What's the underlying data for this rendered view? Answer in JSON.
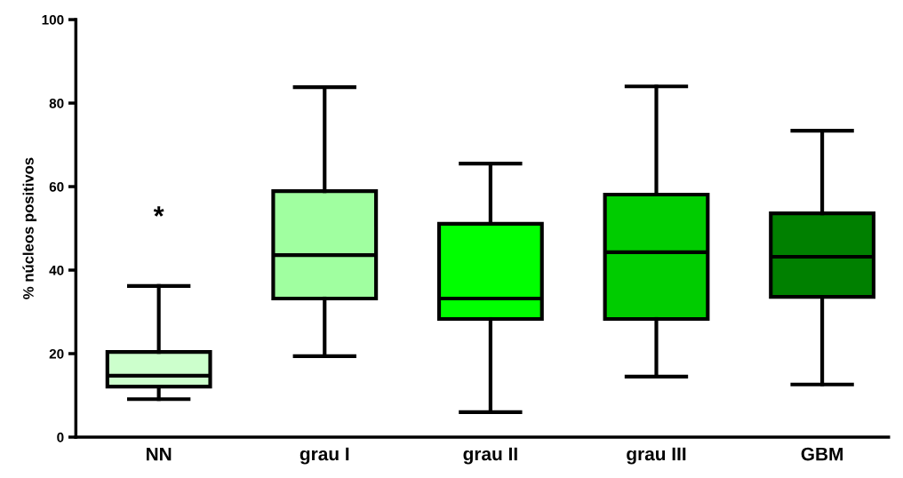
{
  "chart_data": {
    "type": "box",
    "ylabel": "% núcleos positivos",
    "categories": [
      "NN",
      "grau I",
      "grau II",
      "grau III",
      "GBM"
    ],
    "colors": [
      "#ccffcc",
      "#a0ffa0",
      "#00ff00",
      "#00cc00",
      "#008000"
    ],
    "boxes": [
      {
        "low": 9.1,
        "q1": 12.1,
        "median": 14.7,
        "q3": 20.4,
        "high": 36.2
      },
      {
        "low": 19.4,
        "q1": 33.2,
        "median": 43.6,
        "q3": 58.9,
        "high": 83.8
      },
      {
        "low": 6.0,
        "q1": 28.3,
        "median": 33.2,
        "q3": 51.1,
        "high": 65.5
      },
      {
        "low": 14.5,
        "q1": 28.3,
        "median": 44.3,
        "q3": 58.1,
        "high": 84.0
      },
      {
        "low": 12.6,
        "q1": 33.6,
        "median": 43.2,
        "q3": 53.6,
        "high": 73.4
      }
    ],
    "ylim": [
      0,
      100
    ],
    "yticks": [
      0,
      20,
      40,
      60,
      80,
      100
    ],
    "grid": false,
    "annotations": [
      "*"
    ]
  }
}
